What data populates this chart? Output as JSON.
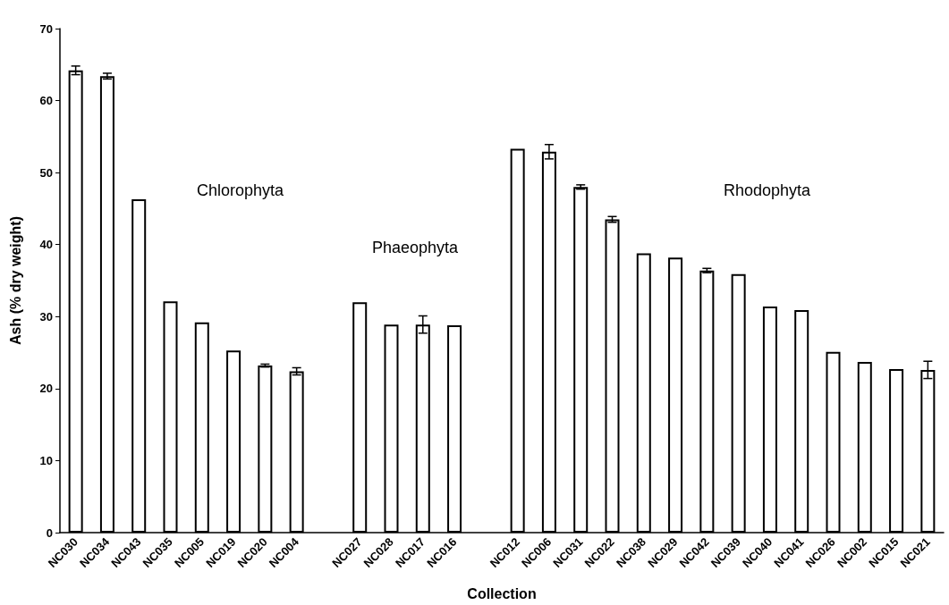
{
  "chart_data": {
    "type": "bar",
    "xlabel": "Collection",
    "ylabel": "Ash (% dry weight)",
    "categories": [
      "NC030",
      "NC034",
      "NC043",
      "NC035",
      "NC005",
      "NC019",
      "NC020",
      "NC004",
      null,
      "NC027",
      "NC028",
      "NC017",
      "NC016",
      null,
      "NC012",
      "NC006",
      "NC031",
      "NC022",
      "NC038",
      "NC029",
      "NC042",
      "NC039",
      "NC040",
      "NC041",
      "NC026",
      "NC002",
      "NC015",
      "NC021"
    ],
    "values": [
      64.2,
      63.4,
      46.3,
      32.1,
      29.2,
      25.3,
      23.2,
      22.4,
      null,
      32.0,
      28.9,
      28.9,
      28.8,
      null,
      53.3,
      52.9,
      48.0,
      43.5,
      38.8,
      38.2,
      36.4,
      35.9,
      31.4,
      30.9,
      25.1,
      23.7,
      22.7,
      22.6
    ],
    "errors": [
      0.6,
      0.4,
      null,
      null,
      null,
      null,
      0.2,
      0.5,
      null,
      null,
      null,
      1.2,
      null,
      null,
      null,
      1.0,
      0.3,
      0.4,
      null,
      null,
      0.3,
      null,
      null,
      null,
      null,
      null,
      null,
      1.2
    ],
    "color": "#ffffff",
    "ylim": [
      0,
      70
    ],
    "yticks": [
      0,
      10,
      20,
      30,
      40,
      50,
      60,
      70
    ],
    "grid": false,
    "annotations": [
      "Chlorophyta",
      "Phaeophyta",
      "Rhodophyta"
    ]
  }
}
